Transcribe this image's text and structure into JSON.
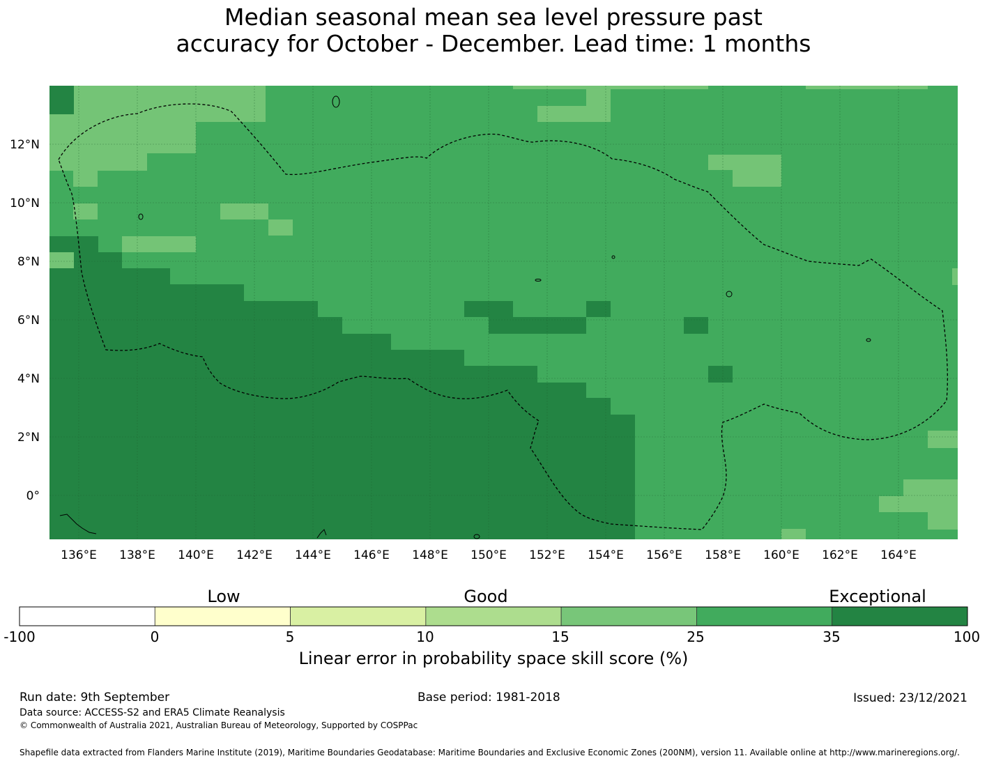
{
  "title": {
    "line1": "Median seasonal mean sea level pressure past",
    "line2": "accuracy for October - December. Lead time: 1 months"
  },
  "map": {
    "lon_labels": [
      "136°E",
      "138°E",
      "140°E",
      "142°E",
      "144°E",
      "146°E",
      "148°E",
      "150°E",
      "152°E",
      "154°E",
      "156°E",
      "158°E",
      "160°E",
      "162°E",
      "164°E"
    ],
    "lat_labels": [
      "12°N",
      "10°N",
      "8°N",
      "6°N",
      "4°N",
      "2°N",
      "0°"
    ],
    "colors": {
      "c15_25": "#74c476",
      "c25_35": "#41ab5d",
      "c35_100": "#238443"
    }
  },
  "colorbar": {
    "categories": [
      "Low",
      "Good",
      "Exceptional"
    ],
    "ticks": [
      "-100",
      "0",
      "5",
      "10",
      "15",
      "25",
      "35",
      "100"
    ],
    "colors": [
      "#ffffff",
      "#ffffcc",
      "#d9f0a3",
      "#addd8e",
      "#78c679",
      "#41ab5d",
      "#238443"
    ],
    "label": "Linear error in probability space skill score (%)"
  },
  "footer": {
    "run_date": "Run date: 9th September",
    "base_period": "Base period: 1981-2018",
    "issued": "Issued: 23/12/2021",
    "data_source": "Data source: ACCESS-S2 and ERA5 Climate Reanalysis",
    "copyright": "© Commonwealth of Australia 2021, Australian Bureau of Meteorology, Supported by COSPPac",
    "shapefile": "Shapefile data extracted from Flanders Marine Institute (2019), Maritime Boundaries Geodatabase: Maritime Boundaries and Exclusive Economic Zones (200NM), version 11. Available online at http://www.marineregions.org/."
  }
}
